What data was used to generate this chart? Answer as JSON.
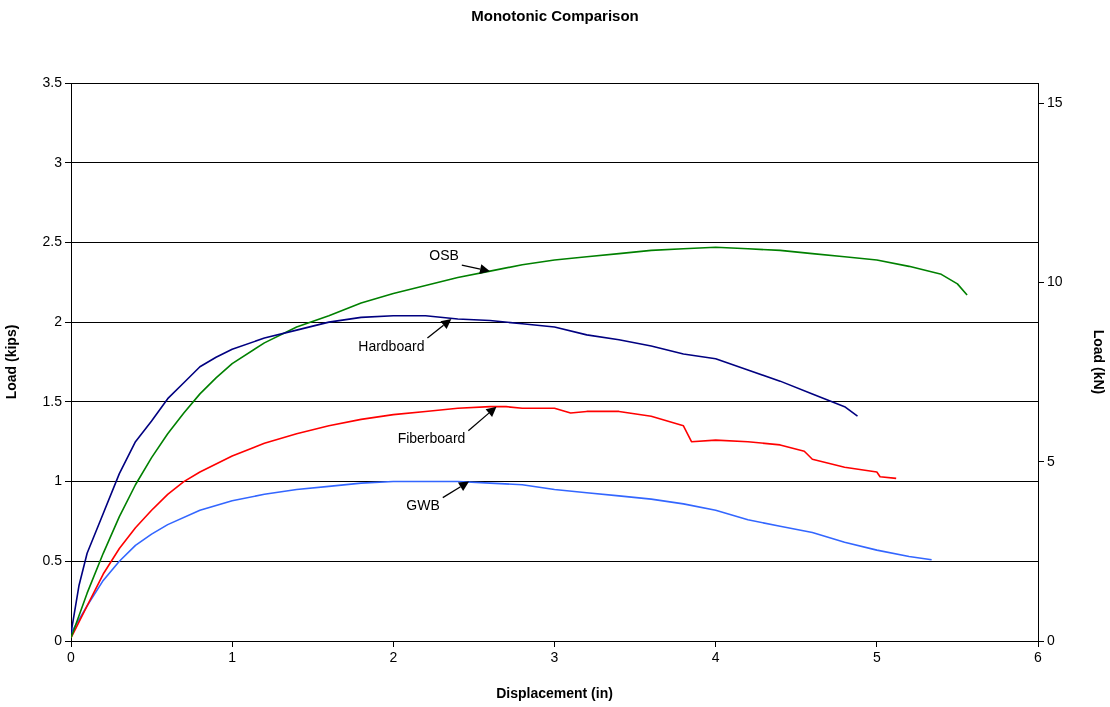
{
  "chart_data": {
    "type": "line",
    "title": "Monotonic Comparison",
    "xlabel": "Displacement (in)",
    "ylabel": "Load (kips)",
    "y2label": "Load (kN)",
    "xlim": [
      0,
      6
    ],
    "xticks": [
      0,
      1,
      2,
      3,
      4,
      5,
      6
    ],
    "ylim": [
      0,
      3.5
    ],
    "yticks": [
      0,
      0.5,
      1,
      1.5,
      2,
      2.5,
      3,
      3.5
    ],
    "y2lim": [
      0,
      15.57
    ],
    "y2ticks": [
      0,
      5,
      10,
      15
    ],
    "grid": "y",
    "legend": false,
    "marker": "none",
    "line_style": "solid",
    "series": [
      {
        "color": "#000080",
        "x": [
          0,
          0.05,
          0.1,
          0.2,
          0.3,
          0.4,
          0.5,
          0.6,
          0.7,
          0.8,
          0.9,
          1.0,
          1.2,
          1.4,
          1.6,
          1.8,
          2.0,
          2.2,
          2.4,
          2.6,
          2.8,
          3.0,
          3.2,
          3.4,
          3.6,
          3.8,
          4.0,
          4.2,
          4.4,
          4.6,
          4.8,
          4.88
        ],
        "values": [
          0.05,
          0.35,
          0.55,
          0.8,
          1.05,
          1.25,
          1.38,
          1.52,
          1.62,
          1.72,
          1.78,
          1.83,
          1.9,
          1.95,
          2.0,
          2.03,
          2.04,
          2.04,
          2.02,
          2.01,
          1.99,
          1.97,
          1.92,
          1.89,
          1.85,
          1.8,
          1.77,
          1.7,
          1.63,
          1.55,
          1.47,
          1.41
        ]
      },
      {
        "color": "#008000",
        "x": [
          0,
          0.1,
          0.2,
          0.3,
          0.4,
          0.5,
          0.6,
          0.7,
          0.8,
          0.9,
          1.0,
          1.2,
          1.4,
          1.6,
          1.8,
          2.0,
          2.2,
          2.4,
          2.6,
          2.8,
          3.0,
          3.2,
          3.4,
          3.6,
          3.8,
          4.0,
          4.2,
          4.4,
          4.6,
          4.8,
          5.0,
          5.2,
          5.4,
          5.5,
          5.56
        ],
        "values": [
          0.02,
          0.3,
          0.55,
          0.78,
          0.98,
          1.15,
          1.3,
          1.43,
          1.55,
          1.65,
          1.74,
          1.87,
          1.97,
          2.04,
          2.12,
          2.18,
          2.23,
          2.28,
          2.32,
          2.36,
          2.39,
          2.41,
          2.43,
          2.45,
          2.46,
          2.47,
          2.46,
          2.45,
          2.43,
          2.41,
          2.39,
          2.35,
          2.3,
          2.24,
          2.17
        ]
      },
      {
        "color": "#ff0000",
        "x": [
          0,
          0.1,
          0.2,
          0.3,
          0.4,
          0.5,
          0.6,
          0.7,
          0.8,
          1.0,
          1.2,
          1.4,
          1.6,
          1.8,
          2.0,
          2.2,
          2.4,
          2.6,
          2.7,
          2.8,
          3.0,
          3.1,
          3.2,
          3.4,
          3.6,
          3.8,
          3.85,
          4.0,
          4.2,
          4.4,
          4.55,
          4.6,
          4.8,
          5.0,
          5.02,
          5.12
        ],
        "values": [
          0.02,
          0.22,
          0.42,
          0.58,
          0.71,
          0.82,
          0.92,
          1.0,
          1.06,
          1.16,
          1.24,
          1.3,
          1.35,
          1.39,
          1.42,
          1.44,
          1.46,
          1.47,
          1.47,
          1.46,
          1.46,
          1.43,
          1.44,
          1.44,
          1.41,
          1.35,
          1.25,
          1.26,
          1.25,
          1.23,
          1.19,
          1.14,
          1.09,
          1.06,
          1.03,
          1.02
        ]
      },
      {
        "color": "#3366ff",
        "x": [
          0,
          0.1,
          0.2,
          0.3,
          0.4,
          0.5,
          0.6,
          0.8,
          1.0,
          1.2,
          1.4,
          1.6,
          1.8,
          2.0,
          2.2,
          2.4,
          2.6,
          2.8,
          3.0,
          3.2,
          3.4,
          3.6,
          3.8,
          4.0,
          4.2,
          4.4,
          4.6,
          4.8,
          5.0,
          5.2,
          5.34
        ],
        "values": [
          0.05,
          0.22,
          0.38,
          0.5,
          0.6,
          0.67,
          0.73,
          0.82,
          0.88,
          0.92,
          0.95,
          0.97,
          0.99,
          1.0,
          1.0,
          1.0,
          0.99,
          0.98,
          0.95,
          0.93,
          0.91,
          0.89,
          0.86,
          0.82,
          0.76,
          0.72,
          0.68,
          0.62,
          0.57,
          0.53,
          0.51
        ]
      }
    ],
    "annotations": [
      {
        "text": "OSB",
        "x": 2.6,
        "y": 2.32
      },
      {
        "text": "Hardboard",
        "x": 2.36,
        "y": 2.02
      },
      {
        "text": "Fiberboard",
        "x": 2.64,
        "y": 1.47
      },
      {
        "text": "GWB",
        "x": 2.47,
        "y": 1.0
      }
    ]
  }
}
